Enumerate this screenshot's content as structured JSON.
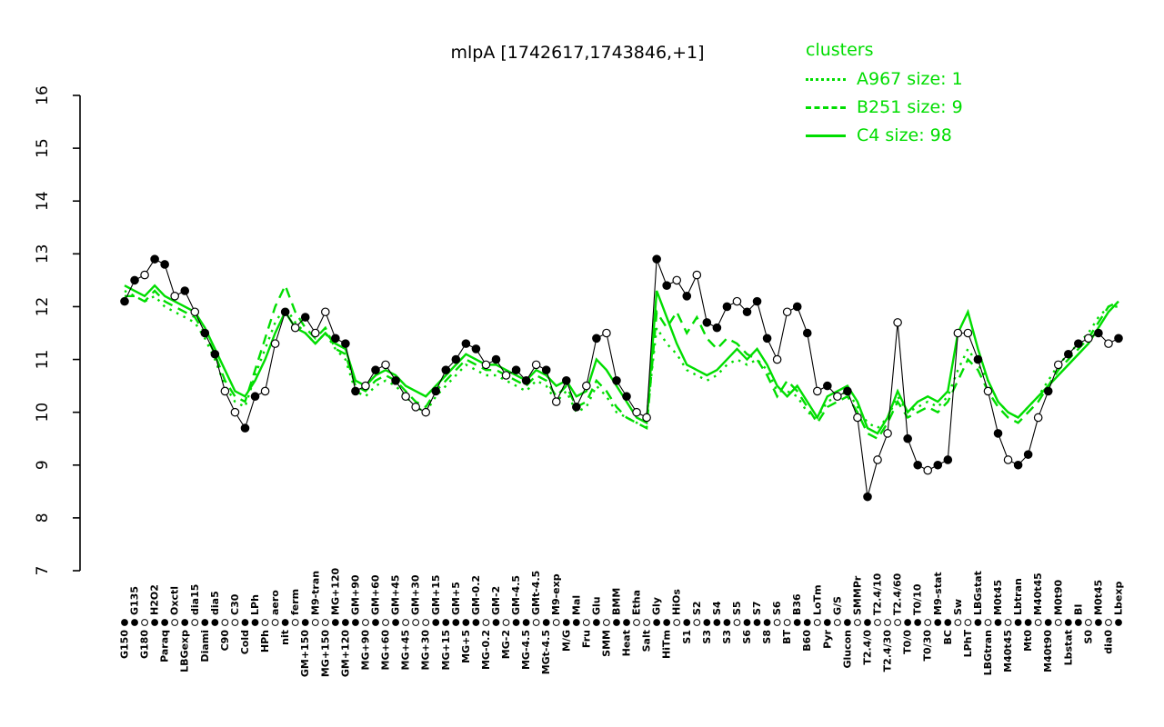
{
  "title": "mlpA [1742617,1743846,+1]",
  "legend": {
    "header": "clusters",
    "color": "#00dd00",
    "items": [
      {
        "label": "A967 size: 1",
        "style": "dotted"
      },
      {
        "label": "B251 size: 9",
        "style": "dashed"
      },
      {
        "label": "C4 size: 98",
        "style": "solid"
      }
    ]
  },
  "chart_data": {
    "type": "line",
    "title": "mlpA [1742617,1743846,+1]",
    "xlabel": "",
    "ylabel": "",
    "ylim": [
      7,
      16
    ],
    "yticks": [
      7,
      8,
      9,
      10,
      11,
      12,
      13,
      14,
      15,
      16
    ],
    "grid": false,
    "legend_position": "top-right",
    "categories": [
      "G150",
      "G135",
      "G180",
      "H2O2",
      "Paraq",
      "Oxctl",
      "LBGexp",
      "dia15",
      "Diami",
      "dia5",
      "C90",
      "C30",
      "Cold",
      "LPh",
      "HPh",
      "aero",
      "nit",
      "ferm",
      "GM+150",
      "M9-tran",
      "MG+150",
      "MG+120",
      "GM+120",
      "GM+90",
      "MG+90",
      "GM+60",
      "MG+60",
      "GM+45",
      "MG+45",
      "GM+30",
      "MG+30",
      "GM+15",
      "MG+15",
      "GM+5",
      "MG+5",
      "GM-0.2",
      "MG-0.2",
      "GM-2",
      "MG-2",
      "GM-4.5",
      "MG-4.5",
      "GMt-4.5",
      "MGt-4.5",
      "M9-exp",
      "M/G",
      "Mal",
      "Fru",
      "Glu",
      "SMM",
      "BMM",
      "Heat",
      "Etha",
      "Salt",
      "Gly",
      "HiTm",
      "HiOs",
      "S1",
      "S2",
      "S3",
      "S4",
      "S3",
      "S5",
      "S6",
      "S7",
      "S8",
      "S6",
      "BT",
      "B36",
      "B60",
      "LoTm",
      "Pyr",
      "G/S",
      "Glucon",
      "SMMPr",
      "T2.4/0",
      "T2.4/10",
      "T2.4/30",
      "T2.4/60",
      "T0/0",
      "T0/10",
      "T0/30",
      "M9-stat",
      "BC",
      "Sw",
      "LPhT",
      "LBGstat",
      "LBGtran",
      "M0t45",
      "M40t45",
      "Lbtran",
      "Mt0",
      "M40t45",
      "M40t90",
      "M0t90",
      "Lbstat",
      "BI",
      "S0",
      "M0t45",
      "dia0",
      "Lbexp"
    ],
    "series": [
      {
        "name": "mlpA gene profile",
        "role": "gene",
        "color": "#000000",
        "dash": "solid",
        "values": [
          12.1,
          12.5,
          12.6,
          12.9,
          12.8,
          12.2,
          12.3,
          11.9,
          11.5,
          11.1,
          10.4,
          10.0,
          9.7,
          10.3,
          10.4,
          11.3,
          11.9,
          11.6,
          11.8,
          11.5,
          11.9,
          11.4,
          11.3,
          10.4,
          10.5,
          10.8,
          10.9,
          10.6,
          10.3,
          10.1,
          10.0,
          10.4,
          10.8,
          11.0,
          11.3,
          11.2,
          10.9,
          11.0,
          10.7,
          10.8,
          10.6,
          10.9,
          10.8,
          10.2,
          10.6,
          10.1,
          10.5,
          11.4,
          11.5,
          10.6,
          10.3,
          10.0,
          9.9,
          12.9,
          12.4,
          12.5,
          12.2,
          12.6,
          11.7,
          11.6,
          12.0,
          12.1,
          11.9,
          12.1,
          11.4,
          11.0,
          11.9,
          12.0,
          11.5,
          10.4,
          10.5,
          10.3,
          10.4,
          9.9,
          8.4,
          9.1,
          9.6,
          11.7,
          9.5,
          9.0,
          8.9,
          9.0,
          9.1,
          11.5,
          11.5,
          11.0,
          10.4,
          9.6,
          9.1,
          9.0,
          9.2,
          9.9,
          10.4,
          10.9,
          11.1,
          11.3,
          11.4,
          11.5,
          11.3,
          11.4
        ],
        "point_fill": [
          1,
          1,
          0,
          1,
          1,
          0,
          1,
          0,
          1,
          1,
          0,
          0,
          1,
          1,
          0,
          0,
          1,
          0,
          1,
          0,
          0,
          1,
          1,
          1,
          0,
          1,
          0,
          1,
          0,
          0,
          0,
          1,
          1,
          1,
          1,
          1,
          0,
          1,
          0,
          1,
          1,
          0,
          1,
          0,
          1,
          1,
          0,
          1,
          0,
          1,
          1,
          0,
          0,
          1,
          1,
          0,
          1,
          0,
          1,
          1,
          1,
          0,
          1,
          1,
          1,
          0,
          0,
          1,
          1,
          0,
          1,
          0,
          1,
          0,
          1,
          0,
          0,
          0,
          1,
          1,
          0,
          1,
          1,
          0,
          0,
          1,
          0,
          1,
          0,
          1,
          1,
          0,
          1,
          0,
          1,
          1,
          0,
          1,
          0,
          1
        ]
      },
      {
        "name": "A967",
        "role": "cluster",
        "size": 1,
        "color": "#00dd00",
        "dash": "dotted",
        "values": [
          12.3,
          12.2,
          12.1,
          12.2,
          12.0,
          11.9,
          11.8,
          11.7,
          11.4,
          11.0,
          10.5,
          10.2,
          10.1,
          10.7,
          11.2,
          11.7,
          12.0,
          11.7,
          11.5,
          11.3,
          11.5,
          11.2,
          11.0,
          10.4,
          10.3,
          10.5,
          10.6,
          10.5,
          10.3,
          10.1,
          10.0,
          10.3,
          10.5,
          10.7,
          10.9,
          10.8,
          10.7,
          10.7,
          10.6,
          10.5,
          10.4,
          10.6,
          10.5,
          10.2,
          10.4,
          10.0,
          10.1,
          10.5,
          10.3,
          10.0,
          9.9,
          9.8,
          9.9,
          11.6,
          11.3,
          11.1,
          10.8,
          10.7,
          10.6,
          10.7,
          10.9,
          11.0,
          10.9,
          11.0,
          10.8,
          10.4,
          10.4,
          10.3,
          10.0,
          9.9,
          10.2,
          10.3,
          10.4,
          10.1,
          9.8,
          9.7,
          9.9,
          10.3,
          10.0,
          10.1,
          10.2,
          10.1,
          10.3,
          10.8,
          11.2,
          10.9,
          10.6,
          10.2,
          10.0,
          9.9,
          10.1,
          10.3,
          10.6,
          10.9,
          11.1,
          11.3,
          11.5,
          11.8,
          12.0,
          12.0
        ]
      },
      {
        "name": "B251",
        "role": "cluster",
        "size": 9,
        "color": "#00dd00",
        "dash": "dashed",
        "values": [
          12.2,
          12.2,
          12.1,
          12.3,
          12.1,
          12.0,
          11.9,
          11.8,
          11.5,
          11.1,
          10.6,
          10.3,
          10.2,
          10.8,
          11.4,
          12.0,
          12.4,
          11.9,
          11.6,
          11.4,
          11.6,
          11.2,
          11.1,
          10.5,
          10.4,
          10.6,
          10.7,
          10.6,
          10.4,
          10.2,
          10.1,
          10.4,
          10.6,
          10.8,
          11.0,
          10.9,
          10.8,
          10.8,
          10.7,
          10.6,
          10.5,
          10.7,
          10.6,
          10.3,
          10.5,
          10.1,
          10.2,
          10.6,
          10.4,
          10.1,
          9.9,
          9.8,
          9.7,
          11.9,
          11.6,
          11.9,
          11.5,
          11.8,
          11.4,
          11.2,
          11.4,
          11.3,
          11.1,
          11.0,
          10.7,
          10.3,
          10.6,
          10.4,
          10.1,
          9.8,
          10.1,
          10.2,
          10.3,
          10.0,
          9.6,
          9.5,
          9.8,
          10.2,
          9.9,
          10.0,
          10.1,
          10.0,
          10.2,
          10.6,
          11.0,
          10.8,
          10.4,
          10.1,
          9.9,
          9.8,
          10.0,
          10.2,
          10.5,
          10.8,
          11.0,
          11.2,
          11.4,
          11.7,
          12.0,
          12.1
        ]
      },
      {
        "name": "C4",
        "role": "cluster",
        "size": 98,
        "color": "#00dd00",
        "dash": "solid",
        "values": [
          12.4,
          12.3,
          12.2,
          12.4,
          12.2,
          12.1,
          12.0,
          11.9,
          11.6,
          11.2,
          10.8,
          10.4,
          10.3,
          10.6,
          11.0,
          11.5,
          11.9,
          11.6,
          11.5,
          11.3,
          11.5,
          11.3,
          11.2,
          10.6,
          10.5,
          10.7,
          10.8,
          10.7,
          10.5,
          10.4,
          10.3,
          10.5,
          10.7,
          10.9,
          11.1,
          11.0,
          10.9,
          10.9,
          10.8,
          10.7,
          10.6,
          10.8,
          10.7,
          10.5,
          10.6,
          10.3,
          10.4,
          11.0,
          10.8,
          10.5,
          10.2,
          9.9,
          9.8,
          12.3,
          11.8,
          11.3,
          10.9,
          10.8,
          10.7,
          10.8,
          11.0,
          11.2,
          11.0,
          11.2,
          10.9,
          10.5,
          10.3,
          10.5,
          10.2,
          9.9,
          10.3,
          10.4,
          10.5,
          10.2,
          9.7,
          9.6,
          9.9,
          10.4,
          10.0,
          10.2,
          10.3,
          10.2,
          10.4,
          11.5,
          11.9,
          11.2,
          10.6,
          10.2,
          10.0,
          9.9,
          10.1,
          10.3,
          10.5,
          10.7,
          10.9,
          11.1,
          11.3,
          11.6,
          11.9,
          12.1
        ]
      }
    ]
  }
}
